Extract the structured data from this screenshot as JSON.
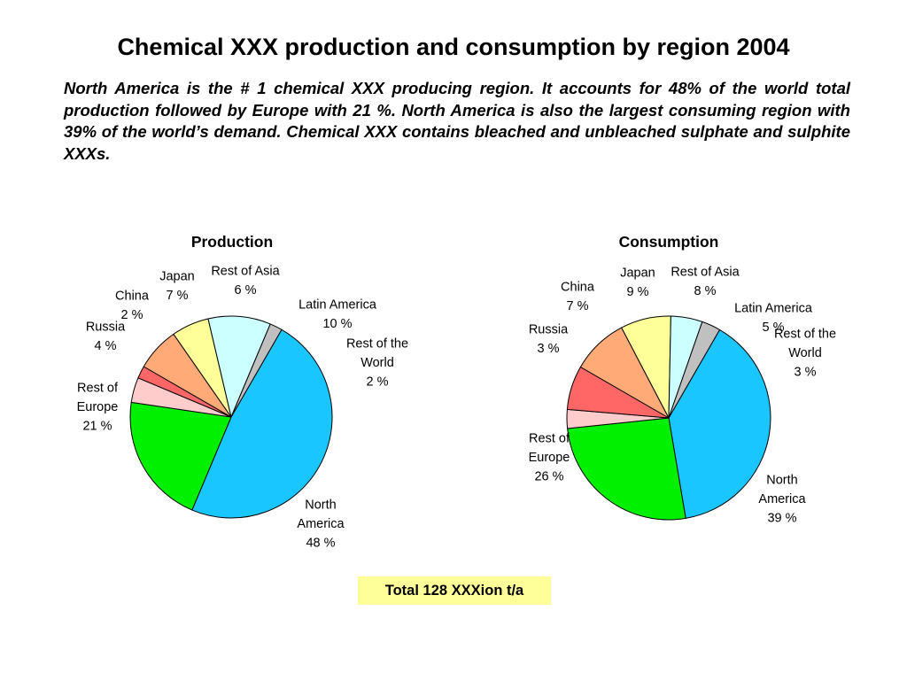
{
  "title": "Chemical XXX production and consumption by region 2004",
  "intro": "North America is the # 1 chemical XXX producing region. It accounts for 48% of the world total production followed by Europe with 21 %. North America is also the largest consuming region with 39% of the world’s demand. Chemical XXX contains bleached and unbleached sulphate and sulphite XXXs.",
  "total_label": "Total 128 XXXion t/a",
  "chart_data": [
    {
      "type": "pie",
      "title": "Production",
      "unit": "%",
      "slices": [
        {
          "name": "North America",
          "label_lines": [
            "North",
            "America",
            "48 %"
          ],
          "value": 48,
          "color": "#1ac6ff"
        },
        {
          "name": "Rest of Europe",
          "label_lines": [
            "Rest of",
            "Europe",
            "21 %"
          ],
          "value": 21,
          "color": "#00f000"
        },
        {
          "name": "Russia",
          "label_lines": [
            "Russia",
            "4 %"
          ],
          "value": 4,
          "color": "#ffcccc"
        },
        {
          "name": "China",
          "label_lines": [
            "China",
            "2 %"
          ],
          "value": 2,
          "color": "#ff6666"
        },
        {
          "name": "Japan",
          "label_lines": [
            "Japan",
            "7 %"
          ],
          "value": 7,
          "color": "#ffaa77"
        },
        {
          "name": "Rest of Asia",
          "label_lines": [
            "Rest of Asia",
            "6 %"
          ],
          "value": 6,
          "color": "#ffff99"
        },
        {
          "name": "Latin America",
          "label_lines": [
            "Latin America",
            "10 %"
          ],
          "value": 10,
          "color": "#ccffff"
        },
        {
          "name": "Rest of the World",
          "label_lines": [
            "Rest of the",
            "World",
            "2 %"
          ],
          "value": 2,
          "color": "#c0c0c0"
        }
      ]
    },
    {
      "type": "pie",
      "title": "Consumption",
      "unit": "%",
      "slices": [
        {
          "name": "North America",
          "label_lines": [
            "North",
            "America",
            "39 %"
          ],
          "value": 39,
          "color": "#1ac6ff"
        },
        {
          "name": "Rest of Europe",
          "label_lines": [
            "Rest of",
            "Europe",
            "26 %"
          ],
          "value": 26,
          "color": "#00f000"
        },
        {
          "name": "Russia",
          "label_lines": [
            "Russia",
            "3 %"
          ],
          "value": 3,
          "color": "#ffcccc"
        },
        {
          "name": "China",
          "label_lines": [
            "China",
            "7 %"
          ],
          "value": 7,
          "color": "#ff6666"
        },
        {
          "name": "Japan",
          "label_lines": [
            "Japan",
            "9 %"
          ],
          "value": 9,
          "color": "#ffaa77"
        },
        {
          "name": "Rest of Asia",
          "label_lines": [
            "Rest of Asia",
            "8 %"
          ],
          "value": 8,
          "color": "#ffff99"
        },
        {
          "name": "Latin America",
          "label_lines": [
            "Latin America",
            "5 %"
          ],
          "value": 5,
          "color": "#ccffff"
        },
        {
          "name": "Rest of the World",
          "label_lines": [
            "Rest of the",
            "World",
            "3 %"
          ],
          "value": 3,
          "color": "#c0c0c0"
        }
      ]
    }
  ]
}
